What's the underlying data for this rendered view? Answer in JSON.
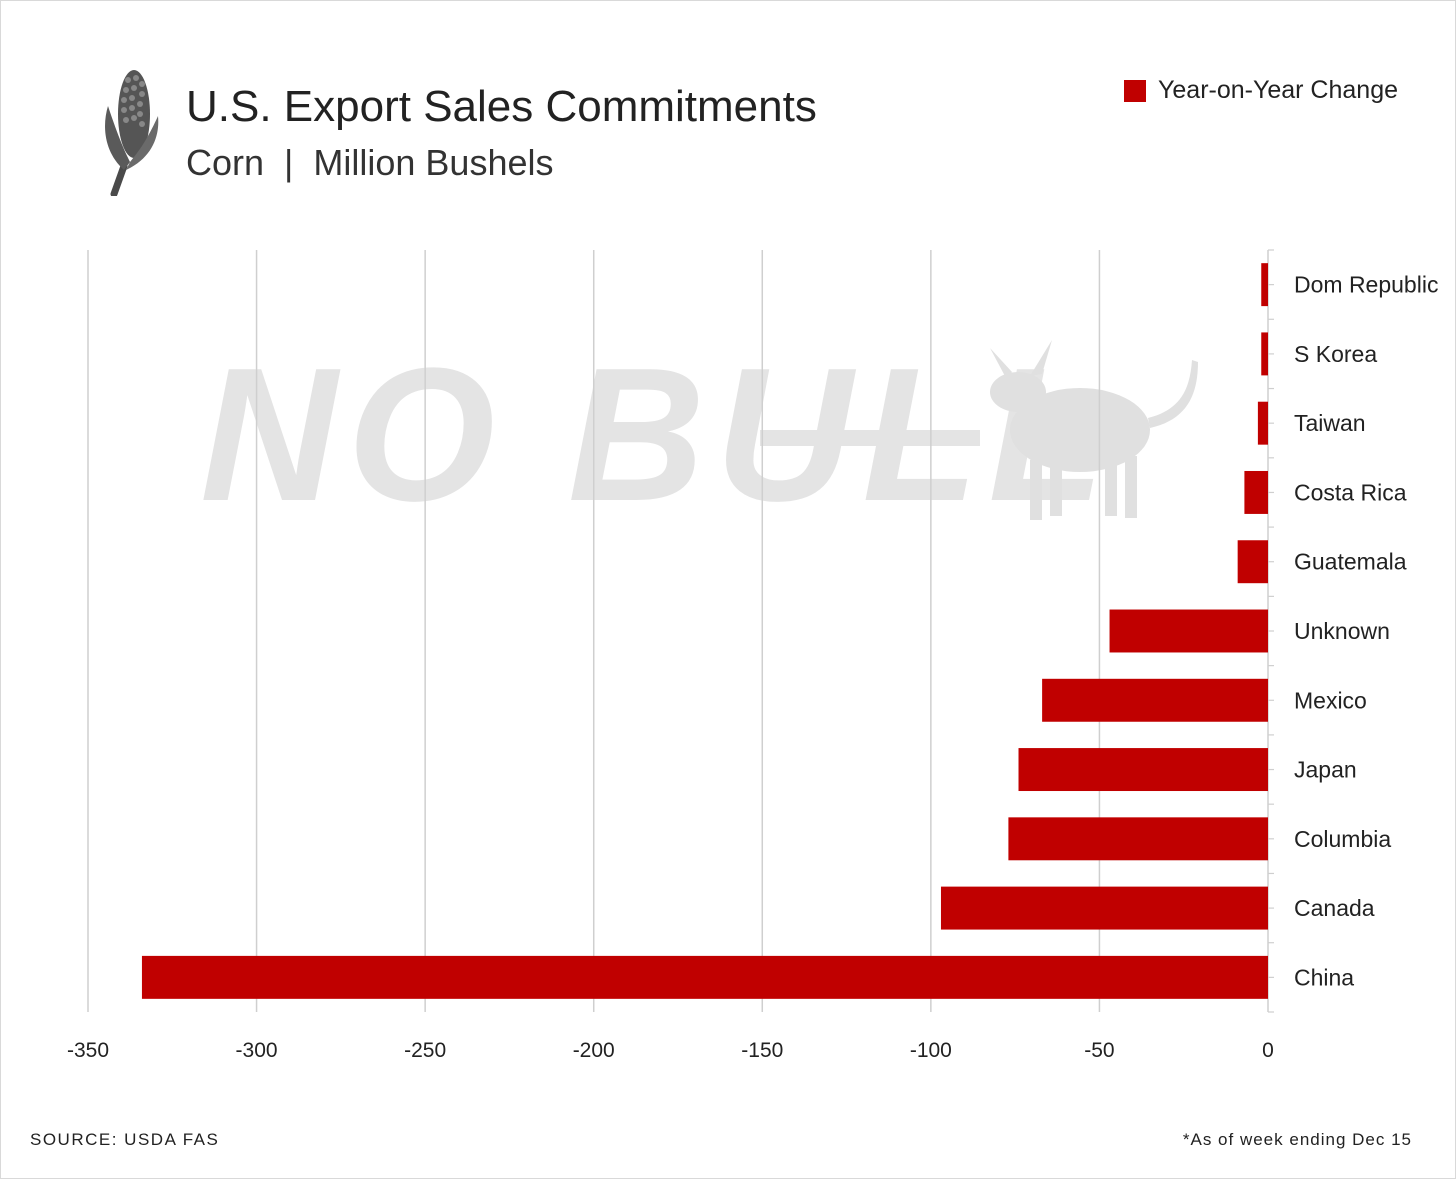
{
  "header": {
    "title": "U.S. Export Sales Commitments",
    "subtitle": "Corn  |  Million Bushels",
    "icon": "corn-icon",
    "watermark_text": "NO BULL"
  },
  "legend": {
    "label": "Year-on-Year Change",
    "color": "#c00000"
  },
  "footer": {
    "source": "SOURCE: USDA FAS",
    "footnote": "*As of week ending Dec 15"
  },
  "chart_data": {
    "type": "bar",
    "orientation": "horizontal",
    "title": "U.S. Export Sales Commitments",
    "subtitle": "Corn | Million Bushels",
    "categories": [
      "Dom Republic",
      "S Korea",
      "Taiwan",
      "Costa Rica",
      "Guatemala",
      "Unknown",
      "Mexico",
      "Japan",
      "Columbia",
      "Canada",
      "China"
    ],
    "series": [
      {
        "name": "Year-on-Year Change",
        "values": [
          -2,
          -2,
          -3,
          -7,
          -9,
          -47,
          -67,
          -74,
          -77,
          -97,
          -334
        ]
      }
    ],
    "xlim": [
      -350,
      0
    ],
    "xticks": [
      -350,
      -300,
      -250,
      -200,
      -150,
      -100,
      -50,
      0
    ],
    "grid": true,
    "legend_position": "top-right",
    "bar_color": "#c00000"
  }
}
